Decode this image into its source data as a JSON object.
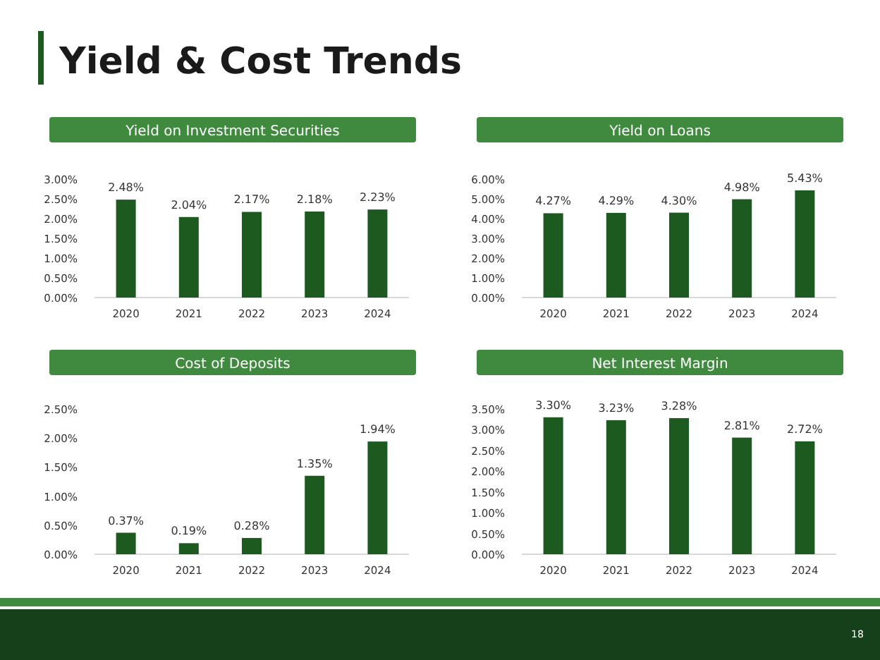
{
  "chart_data": [
    {
      "type": "bar",
      "title": "Yield on Investment Securities",
      "categories": [
        "2020",
        "2021",
        "2022",
        "2023",
        "2024"
      ],
      "values": [
        2.48,
        2.04,
        2.17,
        2.18,
        2.23
      ],
      "value_labels": [
        "2.48%",
        "2.04%",
        "2.17%",
        "2.18%",
        "2.23%"
      ],
      "color": "#1d5a20",
      "ylim": [
        0,
        3
      ],
      "yticks": [
        {
          "value": 0,
          "label": "0.00%"
        },
        {
          "value": 0.5,
          "label": "0.50%"
        },
        {
          "value": 1,
          "label": "1.00%"
        },
        {
          "value": 1.5,
          "label": "1.50%"
        },
        {
          "value": 2,
          "label": "2.00%"
        },
        {
          "value": 2.5,
          "label": "2.50%"
        },
        {
          "value": 3,
          "label": "3.00%"
        }
      ],
      "grid": false,
      "annotations": [
        "Yield & Cost Trends"
      ]
    },
    {
      "type": "bar",
      "title": "Yield on Loans",
      "categories": [
        "2020",
        "2021",
        "2022",
        "2023",
        "2024"
      ],
      "values": [
        4.27,
        4.29,
        4.3,
        4.98,
        5.43
      ],
      "value_labels": [
        "4.27%",
        "4.29%",
        "4.30%",
        "4.98%",
        "5.43%"
      ],
      "color": "#1d5a20",
      "ylim": [
        0,
        6
      ],
      "yticks": [
        {
          "value": 0,
          "label": "0.00%"
        },
        {
          "value": 1,
          "label": "1.00%"
        },
        {
          "value": 2,
          "label": "2.00%"
        },
        {
          "value": 3,
          "label": "3.00%"
        },
        {
          "value": 4,
          "label": "4.00%"
        },
        {
          "value": 5,
          "label": "5.00%"
        },
        {
          "value": 6,
          "label": "6.00%"
        }
      ],
      "grid": false
    },
    {
      "type": "bar",
      "title": "Cost of Deposits",
      "categories": [
        "2020",
        "2021",
        "2022",
        "2023",
        "2024"
      ],
      "values": [
        0.37,
        0.19,
        0.28,
        1.35,
        1.94
      ],
      "value_labels": [
        "0.37%",
        "0.19%",
        "0.28%",
        "1.35%",
        "1.94%"
      ],
      "color": "#1d5a20",
      "ylim": [
        0,
        2.5
      ],
      "yticks": [
        {
          "value": 0,
          "label": "0.00%"
        },
        {
          "value": 0.5,
          "label": "0.50%"
        },
        {
          "value": 1,
          "label": "1.00%"
        },
        {
          "value": 1.5,
          "label": "1.50%"
        },
        {
          "value": 2,
          "label": "2.00%"
        },
        {
          "value": 2.5,
          "label": "2.50%"
        }
      ],
      "grid": false
    },
    {
      "type": "bar",
      "title": "Net Interest Margin",
      "categories": [
        "2020",
        "2021",
        "2022",
        "2023",
        "2024"
      ],
      "values": [
        3.3,
        3.23,
        3.28,
        2.81,
        2.72
      ],
      "value_labels": [
        "3.30%",
        "3.23%",
        "3.28%",
        "2.81%",
        "2.72%"
      ],
      "color": "#1d5a20",
      "ylim": [
        0,
        3.5
      ],
      "yticks": [
        {
          "value": 0,
          "label": "0.00%"
        },
        {
          "value": 0.5,
          "label": "0.50%"
        },
        {
          "value": 1,
          "label": "1.00%"
        },
        {
          "value": 1.5,
          "label": "1.50%"
        },
        {
          "value": 2,
          "label": "2.00%"
        },
        {
          "value": 2.5,
          "label": "2.50%"
        },
        {
          "value": 3,
          "label": "3.00%"
        },
        {
          "value": 3.5,
          "label": "3.50%"
        }
      ],
      "grid": false,
      "annotations": [
        "18"
      ]
    }
  ]
}
